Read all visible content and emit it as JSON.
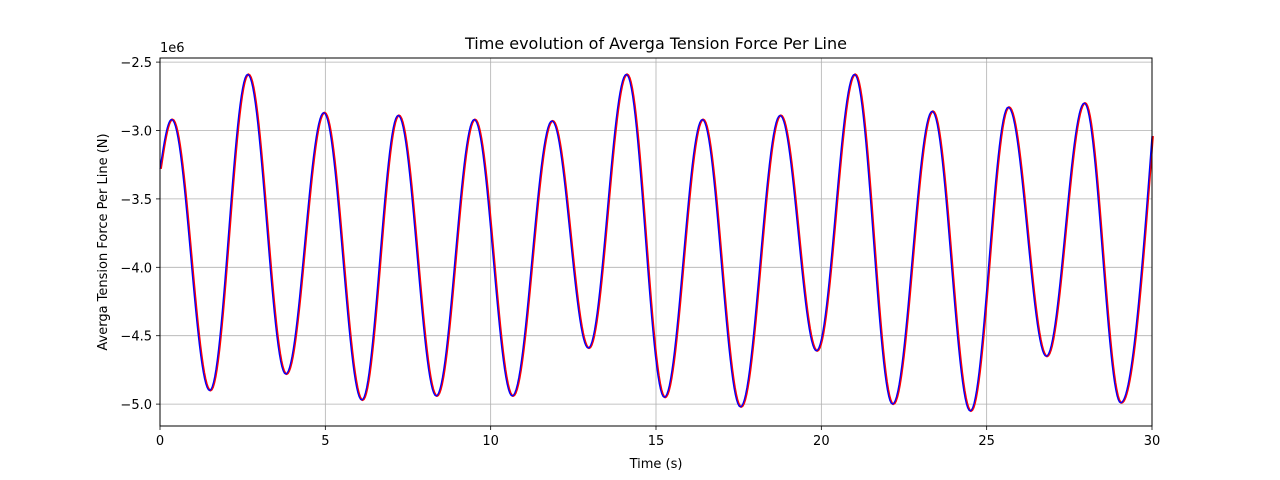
{
  "chart_data": {
    "type": "line",
    "title": "Time evolution of Averga Tension Force Per Line",
    "xlabel": "Time (s)",
    "ylabel": "Averga Tension Force Per Line (N)",
    "y_offset_label": "1e6",
    "xlim": [
      0,
      30
    ],
    "ylim": [
      -5.16,
      -2.47
    ],
    "x_ticks": [
      0,
      5,
      10,
      15,
      20,
      25,
      30
    ],
    "x_tick_labels": [
      "0",
      "5",
      "10",
      "15",
      "20",
      "25",
      "30"
    ],
    "y_ticks": [
      -2.5,
      -3.0,
      -3.5,
      -4.0,
      -4.5,
      -5.0
    ],
    "y_tick_labels": [
      "−2.5",
      "−3.0",
      "−3.5",
      "−4.0",
      "−4.5",
      "−5.0"
    ],
    "grid": true,
    "start_value": -3.28,
    "end_value": -3.04,
    "extrema": [
      [
        0.35,
        -2.92
      ],
      [
        1.5,
        -4.9
      ],
      [
        2.65,
        -2.59
      ],
      [
        3.8,
        -4.78
      ],
      [
        4.95,
        -2.87
      ],
      [
        6.1,
        -4.97
      ],
      [
        7.2,
        -2.89
      ],
      [
        8.35,
        -4.94
      ],
      [
        9.5,
        -2.92
      ],
      [
        10.65,
        -4.94
      ],
      [
        11.85,
        -2.93
      ],
      [
        12.95,
        -4.59
      ],
      [
        14.1,
        -2.59
      ],
      [
        15.25,
        -4.95
      ],
      [
        16.4,
        -2.92
      ],
      [
        17.55,
        -5.02
      ],
      [
        18.75,
        -2.89
      ],
      [
        19.85,
        -4.61
      ],
      [
        21.0,
        -2.59
      ],
      [
        22.15,
        -5.0
      ],
      [
        23.35,
        -2.86
      ],
      [
        24.5,
        -5.05
      ],
      [
        25.65,
        -2.83
      ],
      [
        26.8,
        -4.65
      ],
      [
        27.95,
        -2.8
      ],
      [
        29.05,
        -4.99
      ]
    ],
    "series": [
      {
        "color": "#ff0000"
      },
      {
        "color": "#0000ff"
      }
    ]
  }
}
